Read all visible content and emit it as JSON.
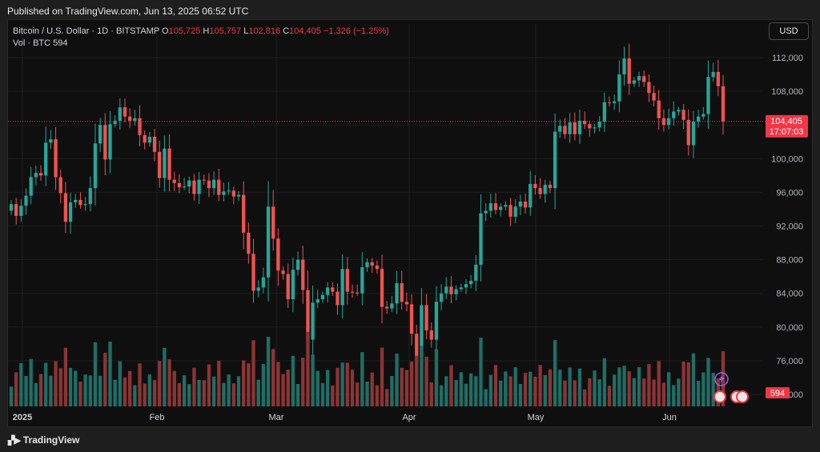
{
  "header": {
    "published": "Published on TradingView.com, Jun 13, 2025 06:52 UTC"
  },
  "legend": {
    "symbol": "Bitcoin / U.S. Dollar · 1D · BITSTAMP",
    "open_label": "O",
    "open": "105,725",
    "high_label": "H",
    "high": "105,757",
    "low_label": "L",
    "low": "102,816",
    "close_label": "C",
    "close": "104,405",
    "change": "−1,326 (−1.25%)",
    "vol_label": "Vol · BTC",
    "vol_value": "594"
  },
  "currency": "USD",
  "price_tag": {
    "price": "104,405",
    "countdown": "17:07:03"
  },
  "volume_tag": "594",
  "brand": {
    "icon": "tradingview-logo-icon",
    "name": "TradingView"
  },
  "colors": {
    "up": "#26a69a",
    "down": "#ef5350",
    "up_vol": "#1f6e66",
    "down_vol": "#8c3434",
    "grid": "#1f1f1f",
    "last": "#f23645"
  },
  "chart_data": {
    "type": "candlestick",
    "symbol": "Bitcoin / U.S. Dollar",
    "interval": "1D",
    "exchange": "BITSTAMP",
    "x_tick_labels": [
      "2025",
      "Feb",
      "Mar",
      "Apr",
      "May",
      "Jun"
    ],
    "y_tick_labels": [
      "112,000",
      "108,000",
      "104,000",
      "100,000",
      "96,000",
      "92,000",
      "88,000",
      "84,000",
      "80,000",
      "76,000",
      "72,000"
    ],
    "ylim": [
      72000,
      114000
    ],
    "y_ticks": [
      112000,
      108000,
      104000,
      100000,
      96000,
      92000,
      88000,
      84000,
      80000,
      76000,
      72000
    ],
    "last_price": 104405,
    "close_series": [
      94600,
      93200,
      94400,
      95600,
      97800,
      98300,
      98000,
      101900,
      102300,
      97800,
      95900,
      92500,
      94800,
      95100,
      94500,
      94600,
      96500,
      101800,
      104000,
      99900,
      104100,
      104500,
      106100,
      105000,
      104500,
      104800,
      102800,
      101900,
      102600,
      100800,
      97700,
      101200,
      97500,
      97100,
      96600,
      96700,
      97400,
      95800,
      97500,
      97400,
      96500,
      97500,
      95700,
      96100,
      96200,
      95500,
      95700,
      91200,
      88700,
      84300,
      84700,
      85900,
      94300,
      90500,
      86700,
      86300,
      83300,
      86800,
      88000,
      84400,
      78500,
      82900,
      83300,
      83800,
      84700,
      84200,
      82600,
      86900,
      84200,
      84100,
      84000,
      87100,
      87700,
      87300,
      86900,
      82400,
      82200,
      82800,
      85200,
      83000,
      82700,
      79200,
      76400,
      82600,
      79600,
      78500,
      83000,
      84000,
      84800,
      83900,
      84500,
      84700,
      85100,
      85500,
      87400,
      93500,
      93800,
      94700,
      93900,
      94300,
      94500,
      93100,
      94300,
      94900,
      94200,
      97000,
      96500,
      95800,
      96900,
      96500,
      103200,
      103900,
      102900,
      104300,
      102900,
      104500,
      104100,
      103600,
      103700,
      104400,
      106700,
      106600,
      106800,
      110000,
      111900,
      108900,
      109300,
      109800,
      109100,
      107800,
      106900,
      104800,
      104000,
      104800,
      105600,
      105800,
      104600,
      101600,
      104400,
      105000,
      105300,
      109700,
      110300,
      108600,
      104400
    ],
    "volume_btc_ticks": [],
    "volume_last": 594
  }
}
